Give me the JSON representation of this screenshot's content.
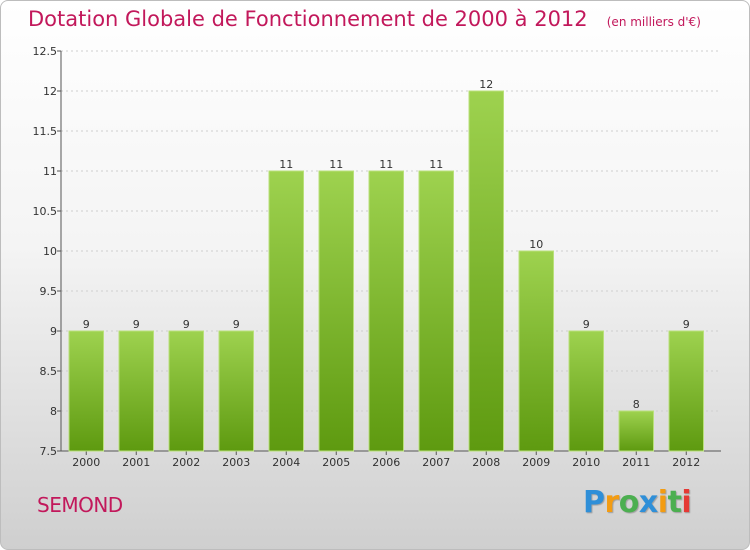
{
  "header": {
    "title": "Dotation Globale de Fonctionnement de 2000 à 2012",
    "unit": "(en milliers d'€)"
  },
  "footer": {
    "place": "SEMOND",
    "logo_letters": [
      "P",
      "r",
      "o",
      "x",
      "i",
      "t",
      "i"
    ],
    "logo_colors": [
      "#2f8fd8",
      "#f39c12",
      "#4caf50",
      "#2f8fd8",
      "#f39c12",
      "#4caf50",
      "#e53935"
    ]
  },
  "colors": {
    "bar_top": "#9ed24f",
    "bar_bottom": "#5e9a10",
    "accent": "#c2185b",
    "grid": "#cfcfcf",
    "axis": "#555555"
  },
  "chart_data": {
    "type": "bar",
    "title": "Dotation Globale de Fonctionnement de 2000 à 2012",
    "subtitle": "(en milliers d'€)",
    "categories": [
      "2000",
      "2001",
      "2002",
      "2003",
      "2004",
      "2005",
      "2006",
      "2007",
      "2008",
      "2009",
      "2010",
      "2011",
      "2012"
    ],
    "values": [
      9,
      9,
      9,
      9,
      11,
      11,
      11,
      11,
      12,
      10,
      9,
      8,
      9
    ],
    "data_labels": [
      "9",
      "9",
      "9",
      "9",
      "11",
      "11",
      "11",
      "11",
      "12",
      "10",
      "9",
      "8",
      "9"
    ],
    "ylim": [
      7.5,
      12.5
    ],
    "yticks": [
      7.5,
      8,
      8.5,
      9,
      9.5,
      10,
      10.5,
      11,
      11.5,
      12,
      12.5
    ],
    "ytick_labels": [
      "7.5",
      "8",
      "8.5",
      "9",
      "9.5",
      "10",
      "10.5",
      "11",
      "11.5",
      "12",
      "12.5"
    ],
    "xlabel": "",
    "ylabel": "",
    "grid": true,
    "legend": "none"
  }
}
